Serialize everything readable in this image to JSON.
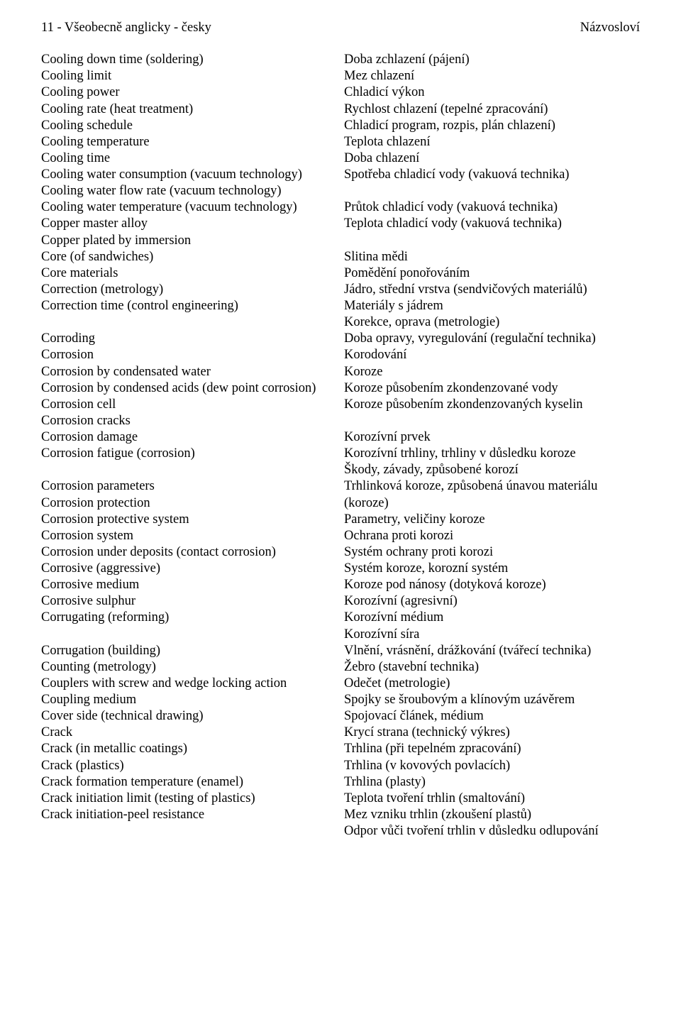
{
  "header": {
    "left": "11 - Všeobecně anglicky - česky",
    "right": "Názvosloví"
  },
  "english": [
    "Cooling down time (soldering)",
    "Cooling limit",
    "Cooling power",
    "Cooling rate (heat treatment)",
    "Cooling schedule",
    "Cooling temperature",
    "Cooling time",
    "Cooling water consumption (vacuum technology)",
    "Cooling water flow rate (vacuum technology)",
    "Cooling water temperature (vacuum technology)",
    "Copper master alloy",
    "Copper plated by immersion",
    "Core (of sandwiches)",
    "Core materials",
    "Correction (metrology)",
    "Correction time (control engineering)",
    "",
    "Corroding",
    "Corrosion",
    "Corrosion by condensated water",
    "Corrosion by condensed acids (dew point corrosion)",
    "Corrosion cell",
    "Corrosion cracks",
    "Corrosion damage",
    "Corrosion fatigue (corrosion)",
    "",
    "Corrosion parameters",
    "Corrosion protection",
    "Corrosion protective system",
    "Corrosion system",
    "Corrosion under deposits (contact corrosion)",
    "Corrosive (aggressive)",
    "Corrosive medium",
    "Corrosive sulphur",
    "Corrugating (reforming)",
    "",
    "Corrugation (building)",
    "Counting (metrology)",
    "Couplers with screw and wedge locking action",
    "Coupling medium",
    "Cover side (technical drawing)",
    "Crack",
    "Crack (in metallic coatings)",
    "Crack (plastics)",
    "Crack formation temperature (enamel)",
    "Crack initiation limit (testing of plastics)",
    "Crack initiation-peel resistance",
    ""
  ],
  "czech": [
    "Doba zchlazení (pájení)",
    "Mez chlazení",
    "Chladicí výkon",
    "Rychlost chlazení (tepelné zpracování)",
    "Chladicí program, rozpis, plán chlazení)",
    "Teplota chlazení",
    "Doba chlazení",
    "Spotřeba chladicí vody (vakuová technika)",
    "",
    "Průtok chladicí vody (vakuová technika)",
    "Teplota chladicí vody (vakuová technika)",
    "",
    "Slitina mědi",
    "Pomědění ponořováním",
    "Jádro, střední vrstva (sendvičových materiálů)",
    "Materiály s jádrem",
    "Korekce, oprava (metrologie)",
    "Doba opravy, vyregulování (regulační technika)",
    "Korodování",
    "Koroze",
    "Koroze působením zkondenzované vody",
    "Koroze působením zkondenzovaných kyselin",
    "",
    "Korozívní prvek",
    "Korozívní trhliny, trhliny v důsledku koroze",
    "Škody, závady, způsobené korozí",
    "Trhlinková koroze, způsobená únavou materiálu (koroze)",
    "Parametry, veličiny koroze",
    "Ochrana proti korozi",
    "Systém ochrany proti korozi",
    "Systém koroze, korozní systém",
    "Koroze pod nánosy (dotyková koroze)",
    "Korozívní (agresivní)",
    "Korozívní médium",
    "Korozívní síra",
    "Vlnění, vrásnění, drážkování (tvářecí technika)",
    "Žebro (stavební technika)",
    "Odečet (metrologie)",
    "Spojky se šroubovým a klínovým uzávěrem",
    "Spojovací článek, médium",
    "Krycí strana (technický výkres)",
    "Trhlina (při tepelném zpracování)",
    "Trhlina (v kovových povlacích)",
    "Trhlina (plasty)",
    "Teplota tvoření trhlin (smaltování)",
    "Mez vzniku trhlin (zkoušení plastů)",
    "Odpor vůči tvoření trhlin v důsledku odlupování"
  ]
}
